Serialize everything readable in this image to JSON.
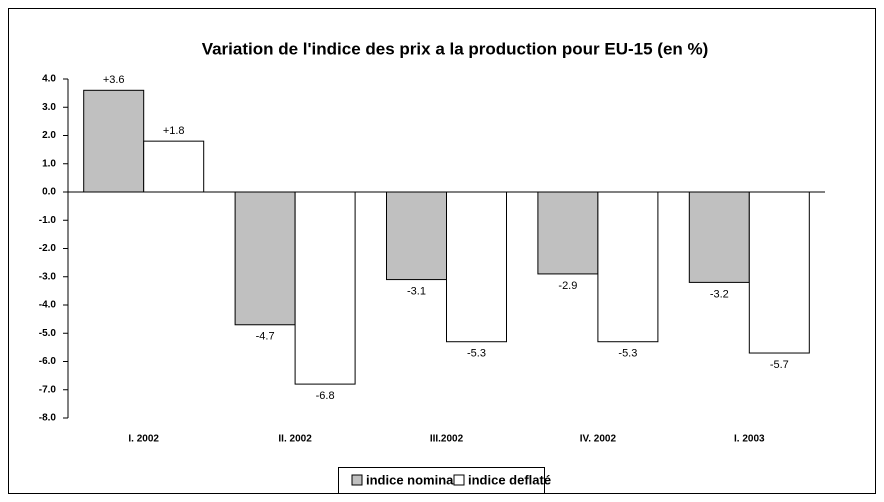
{
  "chart_data": {
    "type": "bar",
    "title": "Variation de l'indice des prix a la production pour EU-15 (en %)",
    "categories": [
      "I. 2002",
      "II. 2002",
      "III.2002",
      "IV. 2002",
      "I. 2003"
    ],
    "series": [
      {
        "name": "indice nominal",
        "color": "#c0c0c0",
        "values": [
          3.6,
          -4.7,
          -3.1,
          -2.9,
          -3.2
        ],
        "value_labels": [
          "+3.6",
          "-4.7",
          "-3.1",
          "-2.9",
          "-3.2"
        ]
      },
      {
        "name": "indice deflaté",
        "color": "#ffffff",
        "values": [
          1.8,
          -6.8,
          -5.3,
          -5.3,
          -5.7
        ],
        "value_labels": [
          "+1.8",
          "-6.8",
          "-5.3",
          "-5.3",
          "-5.7"
        ]
      }
    ],
    "ylim": [
      -8,
      4
    ],
    "yticks": [
      {
        "value": 4,
        "label": "4.0"
      },
      {
        "value": 3,
        "label": "3.0"
      },
      {
        "value": 2,
        "label": "2.0"
      },
      {
        "value": 1,
        "label": "1.0"
      },
      {
        "value": 0,
        "label": "0.0"
      },
      {
        "value": -1,
        "label": "-1.0"
      },
      {
        "value": -2,
        "label": "-2.0"
      },
      {
        "value": -3,
        "label": "-3.0"
      },
      {
        "value": -4,
        "label": "-4.0"
      },
      {
        "value": -5,
        "label": "-5.0"
      },
      {
        "value": -6,
        "label": "-6.0"
      },
      {
        "value": -7,
        "label": "-7.0"
      },
      {
        "value": -8,
        "label": "-8.0"
      }
    ],
    "grid": false,
    "legend": "bottom"
  }
}
